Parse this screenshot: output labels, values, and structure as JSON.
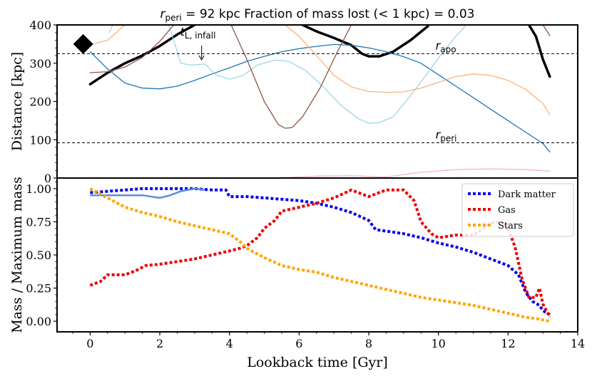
{
  "chart_data": [
    {
      "type": "line",
      "panel": "top",
      "title": "r_peri = 92 kpc  Fraction of mass lost (< 1 kpc) = 0.03",
      "title_parts": {
        "r": "r",
        "peri": "peri",
        "rest": " = 92 kpc  Fraction of mass lost (< 1 kpc) = 0.03"
      },
      "ylabel": "Distance [kpc]",
      "xlim": [
        -0.95,
        14
      ],
      "ylim": [
        0,
        400
      ],
      "yticks": [
        0,
        100,
        200,
        300,
        400
      ],
      "hlines": [
        {
          "name": "r_apo",
          "value": 325,
          "label": "r",
          "sub": "apo"
        },
        {
          "name": "r_peri",
          "value": 92,
          "label": "r",
          "sub": "peri"
        }
      ],
      "annotations": [
        {
          "name": "t_L_infall",
          "label": "t",
          "sub": "L, infall",
          "x": 3.2,
          "y": 305
        }
      ],
      "marker": {
        "name": "diamond-marker",
        "x": -0.2,
        "y": 350
      },
      "series": [
        {
          "name": "host-orbit-thick",
          "color": "#000000",
          "width": 3.5,
          "points": [
            [
              0,
              245
            ],
            [
              0.5,
              275
            ],
            [
              1,
              300
            ],
            [
              1.5,
              320
            ],
            [
              2,
              345
            ],
            [
              2.5,
              375
            ],
            [
              3,
              400
            ]
          ]
        },
        {
          "name": "host-orbit-thick-2",
          "color": "#000000",
          "width": 3.5,
          "points": [
            [
              6.1,
              400
            ],
            [
              6.5,
              383
            ],
            [
              7,
              366
            ],
            [
              7.5,
              347
            ],
            [
              7.8,
              325
            ],
            [
              8,
              318
            ],
            [
              8.3,
              318
            ],
            [
              8.7,
              330
            ],
            [
              9.2,
              360
            ],
            [
              9.7,
              397
            ]
          ]
        },
        {
          "name": "host-orbit-thick-3",
          "color": "#000000",
          "width": 3.5,
          "points": [
            [
              12.6,
              400
            ],
            [
              12.8,
              370
            ],
            [
              13,
              310
            ],
            [
              13.2,
              265
            ]
          ]
        },
        {
          "name": "blue-orbit",
          "color": "#1f77b4",
          "width": 1.3,
          "points": [
            [
              0,
              330
            ],
            [
              0.5,
              285
            ],
            [
              1,
              248
            ],
            [
              1.5,
              235
            ],
            [
              2,
              233
            ],
            [
              2.5,
              240
            ],
            [
              3,
              255
            ],
            [
              3.5,
              272
            ],
            [
              4,
              288
            ],
            [
              4.5,
              305
            ],
            [
              5,
              318
            ],
            [
              5.5,
              330
            ],
            [
              6,
              338
            ],
            [
              6.5,
              344
            ],
            [
              7,
              349
            ],
            [
              7.5,
              347
            ],
            [
              8,
              340
            ],
            [
              8.5,
              330
            ],
            [
              9,
              317
            ],
            [
              9.5,
              300
            ],
            [
              10,
              270
            ],
            [
              10.5,
              240
            ],
            [
              11,
              210
            ],
            [
              11.5,
              180
            ],
            [
              12,
              150
            ],
            [
              12.5,
              120
            ],
            [
              13,
              90
            ],
            [
              13.2,
              68
            ]
          ]
        },
        {
          "name": "lightblue-orbit",
          "color": "#9fd6e8",
          "width": 1.3,
          "points": [
            [
              0.55,
              380
            ],
            [
              0.65,
              400
            ]
          ]
        },
        {
          "name": "lightblue-orbit-2",
          "color": "#9fd6e8",
          "width": 1.3,
          "points": [
            [
              2.25,
              400
            ],
            [
              2.4,
              360
            ],
            [
              2.6,
              300
            ],
            [
              2.9,
              295
            ],
            [
              3.3,
              298
            ],
            [
              3.6,
              270
            ],
            [
              4,
              258
            ],
            [
              4.4,
              268
            ],
            [
              4.8,
              295
            ],
            [
              5.3,
              308
            ],
            [
              5.7,
              305
            ],
            [
              6.2,
              280
            ],
            [
              6.7,
              238
            ],
            [
              7.2,
              190
            ],
            [
              7.7,
              155
            ],
            [
              8,
              143
            ],
            [
              8.3,
              145
            ],
            [
              8.7,
              160
            ],
            [
              9.2,
              215
            ],
            [
              9.7,
              275
            ],
            [
              10.1,
              325
            ],
            [
              10.5,
              370
            ],
            [
              10.8,
              400
            ]
          ]
        },
        {
          "name": "orange-orbit",
          "color": "#fbb37a",
          "width": 1.3,
          "points": [
            [
              0,
              348
            ],
            [
              0.5,
              360
            ],
            [
              1,
              400
            ]
          ]
        },
        {
          "name": "orange-orbit-2",
          "color": "#fbb37a",
          "width": 1.3,
          "points": [
            [
              5.6,
              400
            ],
            [
              6,
              370
            ],
            [
              6.5,
              320
            ],
            [
              7,
              268
            ],
            [
              7.5,
              238
            ],
            [
              8,
              226
            ],
            [
              8.5,
              224
            ],
            [
              9,
              225
            ],
            [
              9.5,
              235
            ],
            [
              10,
              250
            ],
            [
              10.5,
              265
            ],
            [
              11,
              272
            ],
            [
              11.5,
              268
            ],
            [
              12,
              255
            ],
            [
              12.5,
              232
            ],
            [
              13,
              195
            ],
            [
              13.2,
              165
            ]
          ]
        },
        {
          "name": "brown-orbit",
          "color": "#8c564b",
          "width": 1.3,
          "points": [
            [
              0,
              275
            ],
            [
              0.5,
              278
            ],
            [
              1,
              290
            ],
            [
              1.5,
              315
            ],
            [
              2,
              357
            ],
            [
              2.4,
              400
            ]
          ]
        },
        {
          "name": "brown-orbit-2",
          "color": "#8c564b",
          "width": 1.3,
          "points": [
            [
              4.05,
              400
            ],
            [
              4.5,
              310
            ],
            [
              5,
              200
            ],
            [
              5.4,
              140
            ],
            [
              5.6,
              130
            ],
            [
              5.8,
              132
            ],
            [
              6.1,
              160
            ],
            [
              6.6,
              235
            ],
            [
              7.1,
              330
            ],
            [
              7.5,
              400
            ]
          ]
        },
        {
          "name": "brown-orbit-3",
          "color": "#8c564b",
          "width": 1.3,
          "points": [
            [
              13,
              400
            ],
            [
              13.2,
              372
            ]
          ]
        },
        {
          "name": "pink-orbit",
          "color": "#f4b6c8",
          "width": 1.3,
          "points": [
            [
              5.5,
              1
            ],
            [
              6.5,
              5
            ],
            [
              7.5,
              6
            ],
            [
              8.5,
              3
            ],
            [
              9.5,
              15
            ],
            [
              10.5,
              22
            ],
            [
              11.5,
              24
            ],
            [
              12.5,
              22
            ],
            [
              13.2,
              18
            ]
          ]
        }
      ]
    },
    {
      "type": "line",
      "panel": "bottom",
      "xlabel": "Lookback time [Gyr]",
      "ylabel": "Mass / Maximum mass",
      "xlim": [
        -0.95,
        14
      ],
      "ylim": [
        -0.08,
        1.08
      ],
      "xticks": [
        0,
        2,
        4,
        6,
        8,
        10,
        12,
        14
      ],
      "yticks": [
        0,
        0.25,
        0.5,
        0.75,
        1.0
      ],
      "ytick_labels": [
        "0.00",
        "0.25",
        "0.50",
        "0.75",
        "1.00"
      ],
      "legend": {
        "position": "upper-right",
        "entries": [
          "Dark matter",
          "Gas",
          "Stars"
        ]
      },
      "series": [
        {
          "name": "Dark matter",
          "color": "#0000ee",
          "style": "dotted",
          "width": 4,
          "points": [
            [
              0,
              0.97
            ],
            [
              0.5,
              0.98
            ],
            [
              1,
              0.99
            ],
            [
              1.5,
              1.0
            ],
            [
              2,
              1.0
            ],
            [
              2.5,
              1.0
            ],
            [
              3,
              1.0
            ],
            [
              3.5,
              0.99
            ],
            [
              3.9,
              0.99
            ],
            [
              4,
              0.94
            ],
            [
              4.5,
              0.94
            ],
            [
              5,
              0.93
            ],
            [
              5.5,
              0.92
            ],
            [
              6,
              0.91
            ],
            [
              6.5,
              0.89
            ],
            [
              7,
              0.86
            ],
            [
              7.5,
              0.82
            ],
            [
              8,
              0.76
            ],
            [
              8.2,
              0.69
            ],
            [
              8.5,
              0.68
            ],
            [
              9,
              0.66
            ],
            [
              9.5,
              0.63
            ],
            [
              10,
              0.59
            ],
            [
              10.5,
              0.56
            ],
            [
              11,
              0.52
            ],
            [
              11.5,
              0.47
            ],
            [
              12,
              0.42
            ],
            [
              12.3,
              0.35
            ],
            [
              12.5,
              0.22
            ],
            [
              12.7,
              0.15
            ],
            [
              12.9,
              0.12
            ],
            [
              13,
              0.08
            ],
            [
              13.2,
              0.05
            ]
          ]
        },
        {
          "name": "Dark matter solid",
          "color": "#5b8ee0",
          "style": "solid",
          "width": 2.5,
          "points": [
            [
              0,
              0.95
            ],
            [
              0.5,
              0.95
            ],
            [
              1,
              0.95
            ],
            [
              1.5,
              0.95
            ],
            [
              2,
              0.93
            ],
            [
              2.3,
              0.95
            ],
            [
              2.6,
              0.98
            ],
            [
              3,
              1.0
            ],
            [
              3.3,
              0.99
            ]
          ]
        },
        {
          "name": "Gas",
          "color": "#ee0000",
          "style": "dotted",
          "width": 4,
          "points": [
            [
              0,
              0.27
            ],
            [
              0.3,
              0.3
            ],
            [
              0.5,
              0.35
            ],
            [
              1,
              0.35
            ],
            [
              1.3,
              0.38
            ],
            [
              1.6,
              0.42
            ],
            [
              2,
              0.43
            ],
            [
              2.5,
              0.45
            ],
            [
              3,
              0.47
            ],
            [
              3.5,
              0.5
            ],
            [
              4,
              0.53
            ],
            [
              4.3,
              0.55
            ],
            [
              4.5,
              0.57
            ],
            [
              4.8,
              0.63
            ],
            [
              5,
              0.7
            ],
            [
              5.3,
              0.76
            ],
            [
              5.5,
              0.83
            ],
            [
              6,
              0.86
            ],
            [
              6.5,
              0.89
            ],
            [
              7,
              0.93
            ],
            [
              7.5,
              0.99
            ],
            [
              8,
              0.94
            ],
            [
              8.5,
              0.99
            ],
            [
              9,
              0.99
            ],
            [
              9.3,
              0.91
            ],
            [
              9.5,
              0.75
            ],
            [
              9.8,
              0.66
            ],
            [
              10,
              0.63
            ],
            [
              10.5,
              0.65
            ],
            [
              11,
              0.65
            ],
            [
              11.5,
              0.74
            ],
            [
              11.8,
              0.75
            ],
            [
              12,
              0.7
            ],
            [
              12.2,
              0.56
            ],
            [
              12.4,
              0.32
            ],
            [
              12.6,
              0.18
            ],
            [
              12.8,
              0.18
            ],
            [
              12.9,
              0.25
            ],
            [
              13,
              0.13
            ],
            [
              13.2,
              0.03
            ]
          ]
        },
        {
          "name": "Stars",
          "color": "#ffa500",
          "style": "dotted",
          "width": 4,
          "points": [
            [
              0,
              1.0
            ],
            [
              0.5,
              0.93
            ],
            [
              1,
              0.86
            ],
            [
              1.5,
              0.82
            ],
            [
              2,
              0.79
            ],
            [
              2.5,
              0.75
            ],
            [
              3,
              0.72
            ],
            [
              3.5,
              0.69
            ],
            [
              4,
              0.66
            ],
            [
              4.3,
              0.6
            ],
            [
              4.5,
              0.55
            ],
            [
              5,
              0.48
            ],
            [
              5.5,
              0.42
            ],
            [
              6,
              0.39
            ],
            [
              6.5,
              0.37
            ],
            [
              7,
              0.33
            ],
            [
              7.5,
              0.3
            ],
            [
              8,
              0.27
            ],
            [
              8.5,
              0.24
            ],
            [
              9,
              0.21
            ],
            [
              9.5,
              0.18
            ],
            [
              10,
              0.16
            ],
            [
              10.5,
              0.14
            ],
            [
              11,
              0.12
            ],
            [
              11.5,
              0.09
            ],
            [
              12,
              0.06
            ],
            [
              12.5,
              0.03
            ],
            [
              12.8,
              0.02
            ],
            [
              13,
              0.01
            ],
            [
              13.2,
              0.0
            ]
          ]
        }
      ]
    }
  ]
}
